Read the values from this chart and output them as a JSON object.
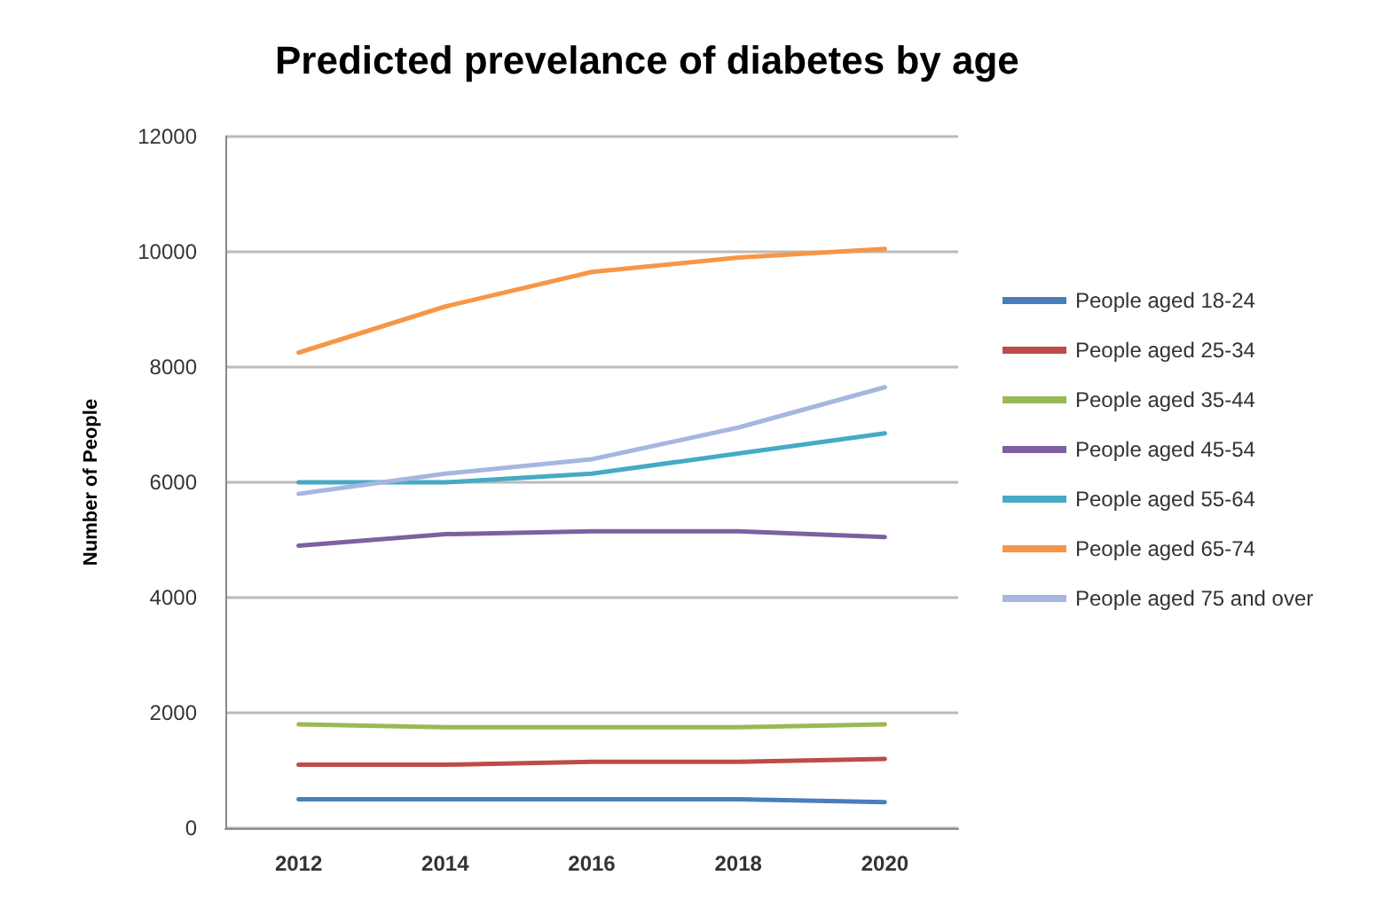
{
  "chart_data": {
    "type": "line",
    "title": "Predicted prevelance of diabetes by age",
    "ylabel": "Number of People",
    "categories": [
      "2012",
      "2014",
      "2016",
      "2018",
      "2020"
    ],
    "series": [
      {
        "name": "People aged 18-24",
        "color": "#4a7ebb",
        "values": [
          500,
          500,
          500,
          500,
          450
        ]
      },
      {
        "name": "People aged 25-34",
        "color": "#be4b48",
        "values": [
          1100,
          1100,
          1150,
          1150,
          1200
        ]
      },
      {
        "name": "People aged 35-44",
        "color": "#98b954",
        "values": [
          1800,
          1750,
          1750,
          1750,
          1800
        ]
      },
      {
        "name": "People aged 45-54",
        "color": "#7d60a0",
        "values": [
          4900,
          5100,
          5150,
          5150,
          5050
        ]
      },
      {
        "name": "People aged 55-64",
        "color": "#46aac5",
        "values": [
          6000,
          6000,
          6150,
          6500,
          6850
        ]
      },
      {
        "name": "People aged 65-74",
        "color": "#f79646",
        "values": [
          8250,
          9050,
          9650,
          9900,
          10050
        ]
      },
      {
        "name": "People aged 75 and over",
        "color": "#a5b6e0",
        "values": [
          5800,
          6150,
          6400,
          6950,
          7650
        ]
      }
    ],
    "ylim": [
      0,
      12000
    ],
    "yticks": [
      0,
      2000,
      4000,
      6000,
      8000,
      10000,
      12000
    ],
    "grid": "y",
    "legend": "right",
    "marker": "none",
    "line_style": "solid"
  }
}
